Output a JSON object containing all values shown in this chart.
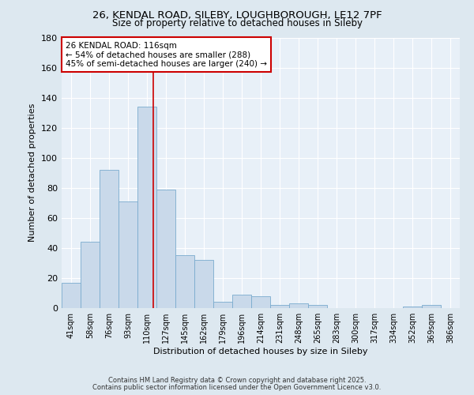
{
  "title_line1": "26, KENDAL ROAD, SILEBY, LOUGHBOROUGH, LE12 7PF",
  "title_line2": "Size of property relative to detached houses in Sileby",
  "xlabel": "Distribution of detached houses by size in Sileby",
  "ylabel": "Number of detached properties",
  "bar_labels": [
    "41sqm",
    "58sqm",
    "76sqm",
    "93sqm",
    "110sqm",
    "127sqm",
    "145sqm",
    "162sqm",
    "179sqm",
    "196sqm",
    "214sqm",
    "231sqm",
    "248sqm",
    "265sqm",
    "283sqm",
    "300sqm",
    "317sqm",
    "334sqm",
    "352sqm",
    "369sqm",
    "386sqm"
  ],
  "bar_heights": [
    17,
    44,
    92,
    71,
    134,
    79,
    35,
    32,
    4,
    9,
    8,
    2,
    3,
    2,
    0,
    0,
    0,
    0,
    1,
    2,
    0
  ],
  "bar_color": "#c9d9ea",
  "bar_edge_color": "#7aabce",
  "annotation_line1": "26 KENDAL ROAD: 116sqm",
  "annotation_line2": "← 54% of detached houses are smaller (288)",
  "annotation_line3": "45% of semi-detached houses are larger (240) →",
  "annotation_box_color": "white",
  "annotation_box_edge_color": "#cc0000",
  "red_line_color": "#cc0000",
  "ylim": [
    0,
    180
  ],
  "yticks": [
    0,
    20,
    40,
    60,
    80,
    100,
    120,
    140,
    160,
    180
  ],
  "footer_line1": "Contains HM Land Registry data © Crown copyright and database right 2025.",
  "footer_line2": "Contains public sector information licensed under the Open Government Licence v3.0.",
  "bg_color": "#dde8f0",
  "plot_bg_color": "#e8f0f8"
}
